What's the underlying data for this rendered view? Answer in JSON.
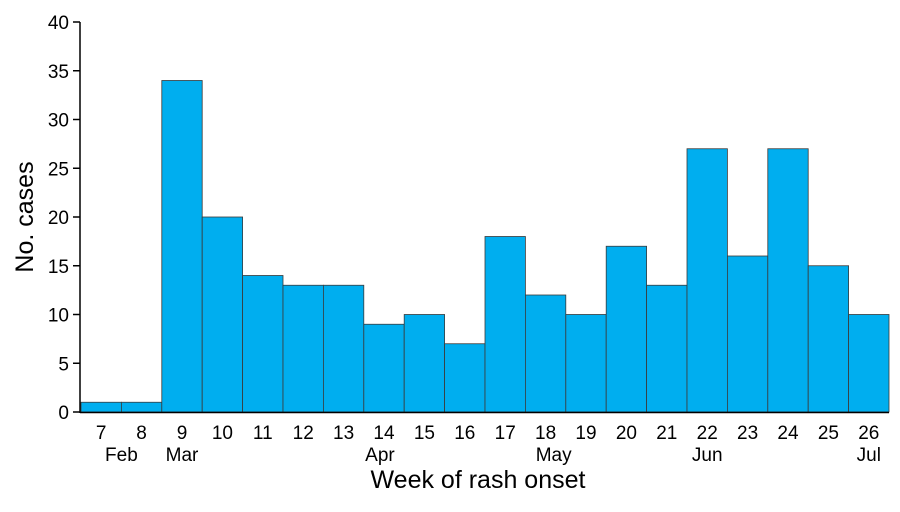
{
  "chart_data": {
    "type": "bar",
    "title": "",
    "xlabel": "Week of rash onset",
    "ylabel": "No. cases",
    "ylim": [
      0,
      40
    ],
    "yticks": [
      0,
      5,
      10,
      15,
      20,
      25,
      30,
      35,
      40
    ],
    "categories": [
      "7",
      "8",
      "9",
      "10",
      "11",
      "12",
      "13",
      "14",
      "15",
      "16",
      "17",
      "18",
      "19",
      "20",
      "21",
      "22",
      "23",
      "24",
      "25",
      "26"
    ],
    "values": [
      1,
      1,
      34,
      20,
      14,
      13,
      13,
      9,
      10,
      7,
      18,
      12,
      10,
      17,
      13,
      27,
      16,
      27,
      15,
      10
    ],
    "month_labels": [
      {
        "label": "Feb",
        "week": 7.5
      },
      {
        "label": "Mar",
        "week": 9
      },
      {
        "label": "Apr",
        "week": 13.9
      },
      {
        "label": "May",
        "week": 18.2
      },
      {
        "label": "Jun",
        "week": 22
      },
      {
        "label": "Jul",
        "week": 26
      }
    ],
    "bar_color": "#00AEEF",
    "bar_edge_color": "#3a3a3a",
    "grid": false,
    "legend": "none"
  }
}
